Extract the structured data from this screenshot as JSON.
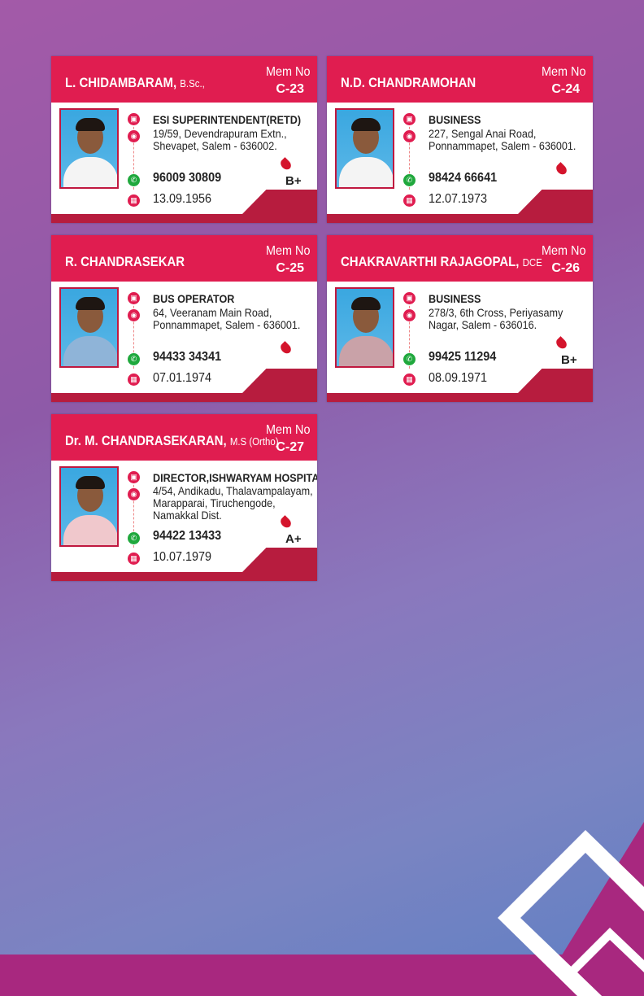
{
  "members": [
    {
      "name": "L. CHIDAMBARAM,",
      "qual": "B.Sc.,",
      "mem_label": "Mem No",
      "mem_no": "C-23",
      "occupation": "ESI SUPERINTENDENT(RETD)",
      "address": [
        "19/59, Devendrapuram Extn.,",
        "Shevapet, Salem - 636002."
      ],
      "phone": "96009 30809",
      "blood_group": "B+",
      "dob": "13.09.1956",
      "shirt": "#f4f4f4"
    },
    {
      "name": "N.D. CHANDRAMOHAN",
      "qual": "",
      "mem_label": "Mem No",
      "mem_no": "C-24",
      "occupation": "BUSINESS",
      "address": [
        "227, Sengal Anai Road,",
        "Ponnammapet, Salem - 636001."
      ],
      "phone": "98424 66641",
      "blood_group": "",
      "dob": "12.07.1973",
      "shirt": "#f4f4f4"
    },
    {
      "name": "R. CHANDRASEKAR",
      "qual": "",
      "mem_label": "Mem No",
      "mem_no": "C-25",
      "occupation": "BUS OPERATOR",
      "address": [
        "64, Veeranam Main Road,",
        "Ponnammapet, Salem - 636001."
      ],
      "phone": "94433 34341",
      "blood_group": "",
      "dob": "07.01.1974",
      "shirt": "#8fb4d8"
    },
    {
      "name": "CHAKRAVARTHI RAJAGOPAL,",
      "qual": "DCE",
      "mem_label": "Mem No",
      "mem_no": "C-26",
      "occupation": "BUSINESS",
      "address": [
        "278/3, 6th Cross, Periyasamy",
        "Nagar, Salem - 636016."
      ],
      "phone": "99425 11294",
      "blood_group": "B+",
      "dob": "08.09.1971",
      "shirt": "#c9a2a8"
    },
    {
      "name": "Dr. M. CHANDRASEKARAN,",
      "qual": "M.S (Ortho)",
      "mem_label": "Mem No",
      "mem_no": "C-27",
      "occupation": "DIRECTOR,ISHWARYAM HOSPITAL",
      "address": [
        "4/54, Andikadu, Thalavampalayam,",
        "Marapparai, Tiruchengode,",
        "Namakkal Dist."
      ],
      "phone": "94422 13433",
      "blood_group": "A+",
      "dob": "10.07.1979",
      "shirt": "#f0c8cc"
    }
  ],
  "colors": {
    "header": "#e01d50",
    "band": "#b71c3e",
    "footer": "#a8287f"
  }
}
